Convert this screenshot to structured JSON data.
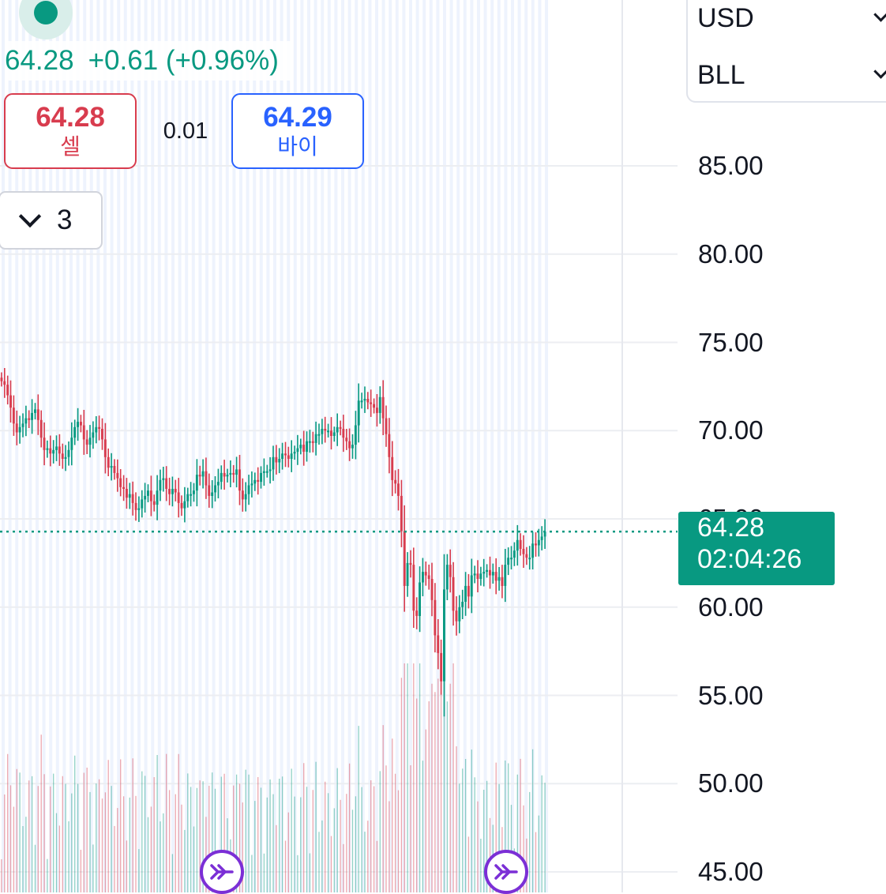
{
  "quote": {
    "last": "64.28",
    "change": "+0.61",
    "change_pct": "(+0.96%)"
  },
  "trade": {
    "sell_price": "64.28",
    "sell_label": "셀",
    "spread": "0.01",
    "buy_price": "64.29",
    "buy_label": "바이"
  },
  "lots": {
    "value": "3",
    "icon": "chevron-down-icon"
  },
  "selectors": {
    "currency": "USD",
    "symbol": "BLL"
  },
  "price_tag": {
    "price": "64.28",
    "countdown": "02:04:26"
  },
  "colors": {
    "up": "#089981",
    "down": "#d83c4e",
    "buy": "#2962ff",
    "event": "#7b2fd6"
  },
  "events": [
    {
      "icon": "fast-forward-event-icon"
    },
    {
      "icon": "fast-forward-event-icon"
    }
  ],
  "chart_data": {
    "type": "candlestick",
    "y_ticks": [
      "85.00",
      "80.00",
      "75.00",
      "70.00",
      "65.00",
      "60.00",
      "55.00",
      "50.00",
      "45.00"
    ],
    "ylim": [
      44.6,
      89.0
    ],
    "current_price": 64.28,
    "grid": true,
    "legend": "none",
    "series": [
      {
        "name": "price",
        "close": [
          72.8,
          72.6,
          72.0,
          71.3,
          70.4,
          69.9,
          70.2,
          70.4,
          70.7,
          70.6,
          71.0,
          71.2,
          70.6,
          69.6,
          68.9,
          69.0,
          68.7,
          68.9,
          69.1,
          68.7,
          68.4,
          68.5,
          68.9,
          69.6,
          70.2,
          70.5,
          70.3,
          69.5,
          69.2,
          69.6,
          69.9,
          70.2,
          70.1,
          69.5,
          68.5,
          67.9,
          68.0,
          67.6,
          67.3,
          66.8,
          66.7,
          66.2,
          66.4,
          65.9,
          65.5,
          65.6,
          66.1,
          66.3,
          66.6,
          66.0,
          65.8,
          66.6,
          67.2,
          67.3,
          66.7,
          66.4,
          66.7,
          66.5,
          65.9,
          65.6,
          66.0,
          66.4,
          66.4,
          66.6,
          67.5,
          67.4,
          67.7,
          66.9,
          66.3,
          66.5,
          66.9,
          67.1,
          67.6,
          67.4,
          67.5,
          67.6,
          67.5,
          67.8,
          66.6,
          66.1,
          66.4,
          66.9,
          67.0,
          67.2,
          67.1,
          67.6,
          67.7,
          67.7,
          67.8,
          68.5,
          68.2,
          68.4,
          68.7,
          68.6,
          68.4,
          68.7,
          68.8,
          69.0,
          69.2,
          68.8,
          69.4,
          69.4,
          69.3,
          69.8,
          69.8,
          70.1,
          70.0,
          70.0,
          69.7,
          69.9,
          70.2,
          70.1,
          69.6,
          69.4,
          69.0,
          69.2,
          70.3,
          71.7,
          71.7,
          71.8,
          71.6,
          71.5,
          71.3,
          71.0,
          71.9,
          70.7,
          69.8,
          68.5,
          67.2,
          67.0,
          66.3,
          64.3,
          61.2,
          62.5,
          62.4,
          59.8,
          59.5,
          61.4,
          62.0,
          61.8,
          61.6,
          60.4,
          58.4,
          57.4,
          55.8,
          61.0,
          62.4,
          61.7,
          59.8,
          59.2,
          60.0,
          60.3,
          61.2,
          60.6,
          61.8,
          61.9,
          61.6,
          61.9,
          62.0,
          62.1,
          61.8,
          62.0,
          61.5,
          61.7,
          61.2,
          62.4,
          62.8,
          62.8,
          63.2,
          63.8,
          63.3,
          63.0,
          62.8,
          62.8,
          63.6,
          63.5,
          63.8,
          64.0,
          64.28
        ]
      }
    ]
  }
}
